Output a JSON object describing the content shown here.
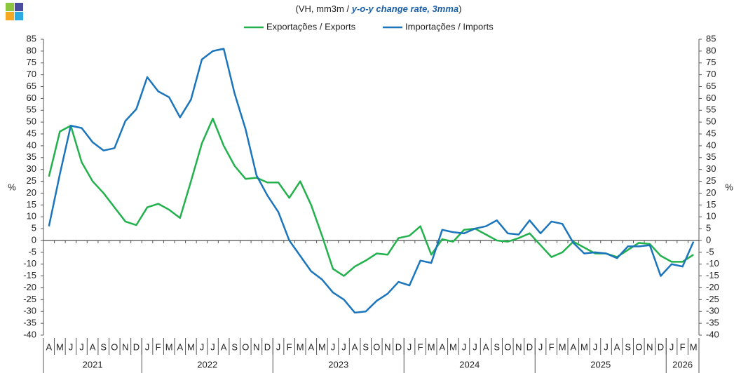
{
  "chart_data": {
    "type": "line",
    "subtitle_parts": [
      "(VH, mm3m  / ",
      "y-o-y change rate, 3mma",
      ")"
    ],
    "y_label": "%",
    "y2_label": "%",
    "categories": [
      "A",
      "M",
      "J",
      "J",
      "A",
      "S",
      "O",
      "N",
      "D",
      "J",
      "F",
      "M",
      "A",
      "M",
      "J",
      "J",
      "A",
      "S",
      "O",
      "N",
      "D",
      "J",
      "F",
      "M",
      "A",
      "M",
      "J",
      "J",
      "A",
      "S",
      "O",
      "N",
      "D",
      "J",
      "F",
      "M",
      "A",
      "M",
      "J",
      "J",
      "A",
      "S",
      "O",
      "N",
      "D",
      "J",
      "F",
      "M",
      "A",
      "M",
      "J",
      "J",
      "A",
      "S",
      "O",
      "N",
      "D",
      "J",
      "F",
      "M"
    ],
    "year_groups": [
      {
        "label": "2021",
        "months": 9
      },
      {
        "label": "2022",
        "months": 12
      },
      {
        "label": "2023",
        "months": 12
      },
      {
        "label": "2024",
        "months": 12
      },
      {
        "label": "2025",
        "months": 12
      },
      {
        "label": "2026",
        "months": 3
      }
    ],
    "series": [
      {
        "name": "Exportações / Exports",
        "color": "#22b14c",
        "values": [
          27,
          46,
          48.5,
          33,
          25,
          20,
          14,
          8,
          6.5,
          14,
          15.5,
          13,
          9.5,
          25,
          41,
          51.5,
          40,
          31.5,
          26,
          26.5,
          24.5,
          24.5,
          18,
          25,
          15,
          2,
          -12,
          -15,
          -11,
          -8.5,
          -5.5,
          -6,
          1,
          2,
          6,
          -6,
          0.5,
          -0.5,
          4.5,
          5,
          2.5,
          0,
          -0.5,
          1,
          3,
          -2,
          -7,
          -5,
          -0.5,
          -3,
          -5.5,
          -5.5,
          -7,
          -4,
          -1,
          -1.5,
          -6.5,
          -9,
          -9,
          -6
        ]
      },
      {
        "name": "Importações / Imports",
        "color": "#1b75bc",
        "values": [
          6,
          28,
          48.5,
          47.5,
          41.5,
          38,
          39,
          50.5,
          55.5,
          69,
          63,
          60.5,
          52,
          59.5,
          76.5,
          80,
          81,
          62,
          47,
          27.5,
          19,
          12,
          0,
          -6.5,
          -13,
          -16.5,
          -22,
          -25,
          -30.5,
          -30,
          -25.5,
          -22.5,
          -17.5,
          -19,
          -8.5,
          -9.5,
          4.5,
          3.5,
          3,
          5,
          6,
          8.5,
          3,
          2.5,
          8.5,
          3,
          8,
          7,
          -1,
          -5.5,
          -5,
          -5.5,
          -7.5,
          -2.5,
          -2.5,
          -2,
          -15,
          -10,
          -11,
          -0.5
        ]
      }
    ],
    "ylim": [
      -40,
      85
    ],
    "yticks": [
      -40,
      -35,
      -30,
      -25,
      -20,
      -15,
      -10,
      -5,
      0,
      5,
      10,
      15,
      20,
      25,
      30,
      35,
      40,
      45,
      50,
      55,
      60,
      65,
      70,
      75,
      80,
      85
    ],
    "y2lim": [
      -40,
      85
    ],
    "y2ticks": [
      -40,
      -35,
      -30,
      -25,
      -20,
      -15,
      -10,
      -5,
      0,
      5,
      10,
      15,
      20,
      25,
      30,
      35,
      40,
      45,
      50,
      55,
      60,
      65,
      70,
      75,
      80,
      85
    ]
  }
}
